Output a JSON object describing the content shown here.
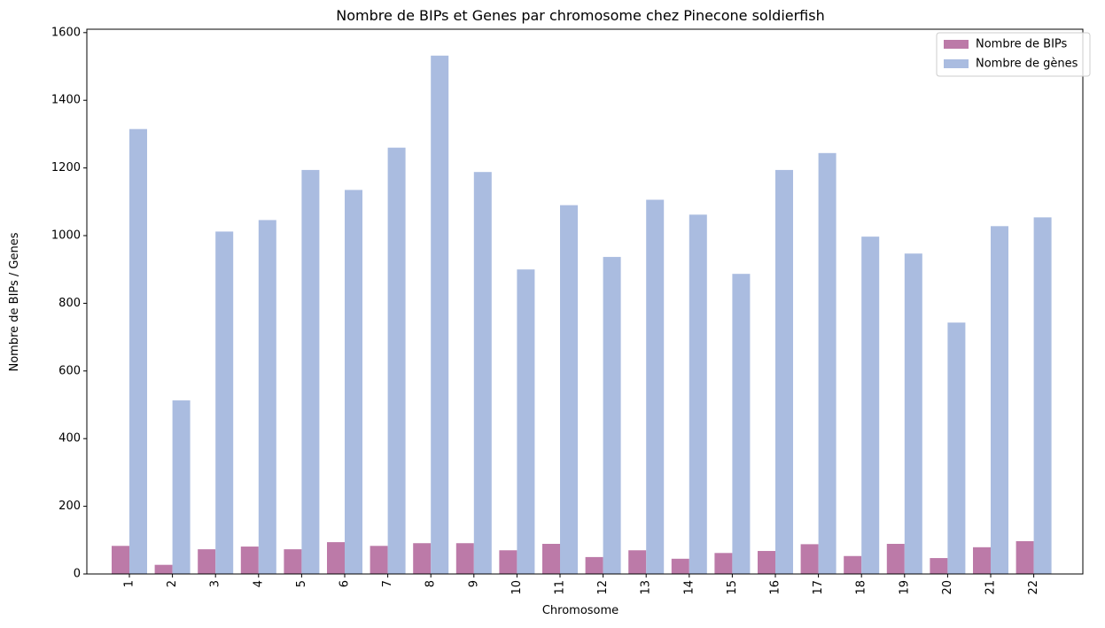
{
  "chart_data": {
    "type": "bar",
    "title": "Nombre de BIPs et Genes par chromosome chez Pinecone soldierfish",
    "xlabel": "Chromosome",
    "ylabel": "Nombre de BIPs / Genes",
    "categories": [
      "1",
      "2",
      "3",
      "4",
      "5",
      "6",
      "7",
      "8",
      "9",
      "10",
      "11",
      "12",
      "13",
      "14",
      "15",
      "16",
      "17",
      "18",
      "19",
      "20",
      "21",
      "22"
    ],
    "series": [
      {
        "name": "Nombre de BIPs",
        "color": "#bc7aa8",
        "values": [
          83,
          27,
          73,
          81,
          73,
          94,
          83,
          91,
          91,
          70,
          89,
          50,
          70,
          45,
          62,
          68,
          88,
          53,
          89,
          47,
          79,
          97
        ]
      },
      {
        "name": "Nombre de gènes",
        "color": "#aabce0",
        "values": [
          1315,
          513,
          1012,
          1046,
          1194,
          1135,
          1260,
          1532,
          1188,
          900,
          1090,
          937,
          1106,
          1062,
          887,
          1194,
          1244,
          997,
          947,
          743,
          1028,
          1054
        ]
      }
    ],
    "ylim": [
      0,
      1610
    ],
    "yticks": [
      0,
      200,
      400,
      600,
      800,
      1000,
      1200,
      1400,
      1600
    ],
    "grid": false,
    "legend_position": "top-right"
  }
}
